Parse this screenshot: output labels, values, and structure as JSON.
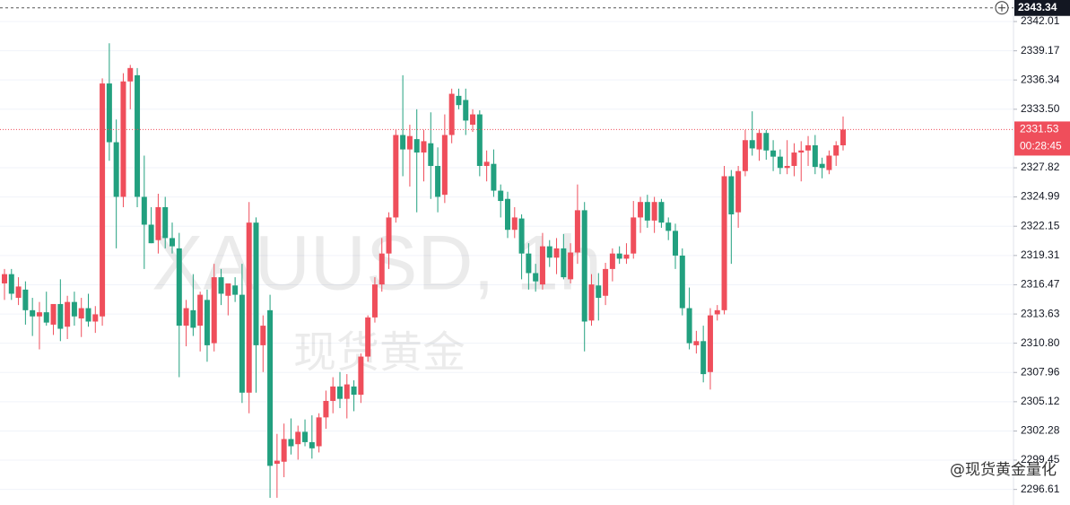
{
  "chart_data": {
    "type": "candlestick",
    "symbol_watermark": "XAUUSD, 1h",
    "name_watermark": "现货黄金",
    "source_watermark": "@现货黄金量化",
    "up_color": "#ef4e5b",
    "down_color": "#22a07f",
    "ylim": [
      2295.1,
      2344.1
    ],
    "yticks": [
      2342.01,
      2339.17,
      2336.34,
      {
        "value": 2333.5,
        "label": "2333.50"
      },
      2327.82,
      2324.99,
      2322.15,
      2319.31,
      2316.47,
      2313.63,
      {
        "value": 2310.8,
        "label": "2310.80"
      },
      2307.96,
      2305.12,
      2302.28,
      2299.45,
      2296.61
    ],
    "grid": true,
    "crosshair_price": 2343.34,
    "last_price": 2331.53,
    "countdown": "00:28:45",
    "candles": [
      [
        2316.6,
        2318,
        2315,
        2317.5
      ],
      [
        2317.5,
        2318,
        2315,
        2315.6
      ],
      [
        2315.2,
        2317.2,
        2314.5,
        2316.3
      ],
      [
        2316,
        2316.8,
        2312.6,
        2314
      ],
      [
        2314,
        2315.2,
        2311.5,
        2313.4
      ],
      [
        2313.4,
        2314.8,
        2310.2,
        2313.8
      ],
      [
        2313.8,
        2315.8,
        2312.5,
        2312.8
      ],
      [
        2312.6,
        2314.2,
        2311.6,
        2314.6
      ],
      [
        2314.6,
        2317,
        2311,
        2312.2
      ],
      [
        2312.4,
        2315.4,
        2311.2,
        2314.8
      ],
      [
        2314.8,
        2315.8,
        2312.5,
        2313.4
      ],
      [
        2313.2,
        2315.2,
        2311.4,
        2314.2
      ],
      [
        2314.2,
        2315.6,
        2312.4,
        2312.9
      ],
      [
        2312.9,
        2314.4,
        2311.8,
        2313.6
      ],
      [
        2313.4,
        2336.5,
        2312.5,
        2336
      ],
      [
        2336,
        2339.9,
        2328.5,
        2330.3
      ],
      [
        2330.3,
        2332.5,
        2320,
        2325
      ],
      [
        2325,
        2337,
        2324,
        2336.2
      ],
      [
        2336.2,
        2337.8,
        2333.5,
        2337.5
      ],
      [
        2336.8,
        2337.5,
        2324,
        2325
      ],
      [
        2325,
        2329,
        2318,
        2322.3
      ],
      [
        2322.3,
        2324,
        2320.5,
        2320.5
      ],
      [
        2320.8,
        2325.3,
        2319.5,
        2324
      ],
      [
        2324,
        2325,
        2320,
        2321
      ],
      [
        2321,
        2322.5,
        2319.5,
        2320.2
      ],
      [
        2320,
        2321.5,
        2307.5,
        2312.5
      ],
      [
        2312.5,
        2315,
        2310.5,
        2314.2
      ],
      [
        2314,
        2317.5,
        2311.5,
        2312.3
      ],
      [
        2312.5,
        2315.8,
        2310,
        2315.5
      ],
      [
        2315,
        2316,
        2309,
        2310.6
      ],
      [
        2310.8,
        2318.5,
        2310,
        2317.2
      ],
      [
        2317.2,
        2318,
        2314.5,
        2315.6
      ],
      [
        2315.4,
        2316.5,
        2313.5,
        2316.6
      ],
      [
        2316.4,
        2317.2,
        2314.8,
        2315.5
      ],
      [
        2315.5,
        2318.5,
        2305,
        2306
      ],
      [
        2306,
        2324.5,
        2304,
        2322.5
      ],
      [
        2322.5,
        2323,
        2306,
        2310.6
      ],
      [
        2310.6,
        2313.5,
        2308,
        2312.5
      ],
      [
        2314,
        2315.5,
        2295.8,
        2298.9
      ],
      [
        2299.1,
        2302,
        2295.8,
        2299.4
      ],
      [
        2299.3,
        2303,
        2297.8,
        2301.5
      ],
      [
        2301.5,
        2303.5,
        2300,
        2300.8
      ],
      [
        2301,
        2302.8,
        2299.5,
        2302.2
      ],
      [
        2302.2,
        2303.4,
        2300.8,
        2301.2
      ],
      [
        2301.2,
        2303.8,
        2299.6,
        2300.6
      ],
      [
        2300.8,
        2304,
        2300.2,
        2303.6
      ],
      [
        2303.6,
        2306.2,
        2302.5,
        2305.2
      ],
      [
        2305.2,
        2307.5,
        2304,
        2306.6
      ],
      [
        2306.6,
        2308,
        2304.5,
        2305.4
      ],
      [
        2305.4,
        2307.8,
        2303.5,
        2306.8
      ],
      [
        2306.6,
        2307.2,
        2304.2,
        2305.8
      ],
      [
        2305.8,
        2309.8,
        2305,
        2309.5
      ],
      [
        2309.5,
        2313.5,
        2309,
        2313.3
      ],
      [
        2313.3,
        2317.2,
        2312.8,
        2316.5
      ],
      [
        2316.5,
        2321,
        2315.8,
        2319.5
      ],
      [
        2319.5,
        2323.5,
        2318,
        2323
      ],
      [
        2323,
        2331.5,
        2322.5,
        2331
      ],
      [
        2331,
        2336.8,
        2327,
        2329.6
      ],
      [
        2329.6,
        2332,
        2326,
        2330.9
      ],
      [
        2330.6,
        2333.5,
        2323.5,
        2329.3
      ],
      [
        2329.3,
        2331.5,
        2326.5,
        2330.4
      ],
      [
        2330.2,
        2333.2,
        2324.8,
        2328
      ],
      [
        2328,
        2329.8,
        2323.5,
        2325
      ],
      [
        2325.2,
        2333,
        2324.4,
        2331
      ],
      [
        2331,
        2335.5,
        2330.2,
        2335
      ],
      [
        2334.8,
        2335.5,
        2333.5,
        2333.9
      ],
      [
        2334.4,
        2335.5,
        2331,
        2332.4
      ],
      [
        2332,
        2333.5,
        2331.3,
        2333
      ],
      [
        2333,
        2333.4,
        2327,
        2328
      ],
      [
        2328,
        2329.5,
        2326.5,
        2328.4
      ],
      [
        2328.2,
        2329.6,
        2325,
        2325.6
      ],
      [
        2325.6,
        2326.2,
        2323,
        2324.6
      ],
      [
        2324.8,
        2325.5,
        2321,
        2321.8
      ],
      [
        2321.8,
        2324,
        2321,
        2323
      ],
      [
        2322.9,
        2323.3,
        2317,
        2319.5
      ],
      [
        2319.5,
        2320.5,
        2316,
        2317.6
      ],
      [
        2317.6,
        2318.5,
        2315.8,
        2316.8
      ],
      [
        2316.5,
        2321.5,
        2316,
        2320.2
      ],
      [
        2320.2,
        2320.8,
        2318.2,
        2319.1
      ],
      [
        2319.1,
        2321,
        2317.5,
        2320
      ],
      [
        2320,
        2321.4,
        2317,
        2317.2
      ],
      [
        2317,
        2320.5,
        2316.6,
        2319.6
      ],
      [
        2319.6,
        2326.2,
        2318.5,
        2323.7
      ],
      [
        2323.7,
        2324.5,
        2310,
        2312.9
      ],
      [
        2313,
        2317.5,
        2312.5,
        2316.5
      ],
      [
        2316.4,
        2317.6,
        2313,
        2315.2
      ],
      [
        2315.4,
        2318.6,
        2314.5,
        2318
      ],
      [
        2318,
        2320,
        2316.8,
        2319.5
      ],
      [
        2319.5,
        2320.2,
        2318.5,
        2319
      ],
      [
        2319,
        2320.5,
        2318.5,
        2319.4
      ],
      [
        2319.5,
        2324.6,
        2319,
        2323
      ],
      [
        2323,
        2325,
        2321.5,
        2324.5
      ],
      [
        2324.5,
        2325.2,
        2322,
        2322.7
      ],
      [
        2322.7,
        2325,
        2321.5,
        2324.5
      ],
      [
        2324.5,
        2324.8,
        2322,
        2322.5
      ],
      [
        2322.5,
        2323,
        2320.8,
        2321.7
      ],
      [
        2321.7,
        2322.4,
        2318,
        2319.3
      ],
      [
        2319.3,
        2320,
        2313.5,
        2314.2
      ],
      [
        2314.2,
        2316.2,
        2310.2,
        2310.8
      ],
      [
        2310.6,
        2312,
        2309.8,
        2311
      ],
      [
        2311,
        2312.5,
        2307,
        2307.8
      ],
      [
        2308,
        2314.2,
        2306.3,
        2313.5
      ],
      [
        2313.6,
        2314.5,
        2313,
        2314
      ],
      [
        2314,
        2328,
        2313.6,
        2327
      ],
      [
        2327,
        2327.6,
        2318.5,
        2323.3
      ],
      [
        2323.5,
        2328,
        2322,
        2327.5
      ],
      [
        2327.5,
        2331.5,
        2327,
        2330.5
      ],
      [
        2330.5,
        2333.3,
        2329,
        2329.7
      ],
      [
        2329.6,
        2331.5,
        2328.5,
        2331.2
      ],
      [
        2331.2,
        2331.5,
        2328.6,
        2329.5
      ],
      [
        2329.5,
        2330.5,
        2327.5,
        2328.9
      ],
      [
        2328.9,
        2329.6,
        2327.2,
        2327.8
      ],
      [
        2327.8,
        2330.5,
        2327.2,
        2328
      ],
      [
        2328,
        2330.2,
        2327,
        2329.3
      ],
      [
        2329.3,
        2330.4,
        2326.5,
        2329.5
      ],
      [
        2329.5,
        2330.9,
        2328,
        2330
      ],
      [
        2330,
        2331,
        2327.2,
        2327.9
      ],
      [
        2328.2,
        2328.8,
        2326.8,
        2327.8
      ],
      [
        2327.6,
        2329.5,
        2327.2,
        2329
      ],
      [
        2329,
        2330.4,
        2328,
        2330
      ],
      [
        2330,
        2332.8,
        2329.5,
        2331.53
      ]
    ]
  }
}
